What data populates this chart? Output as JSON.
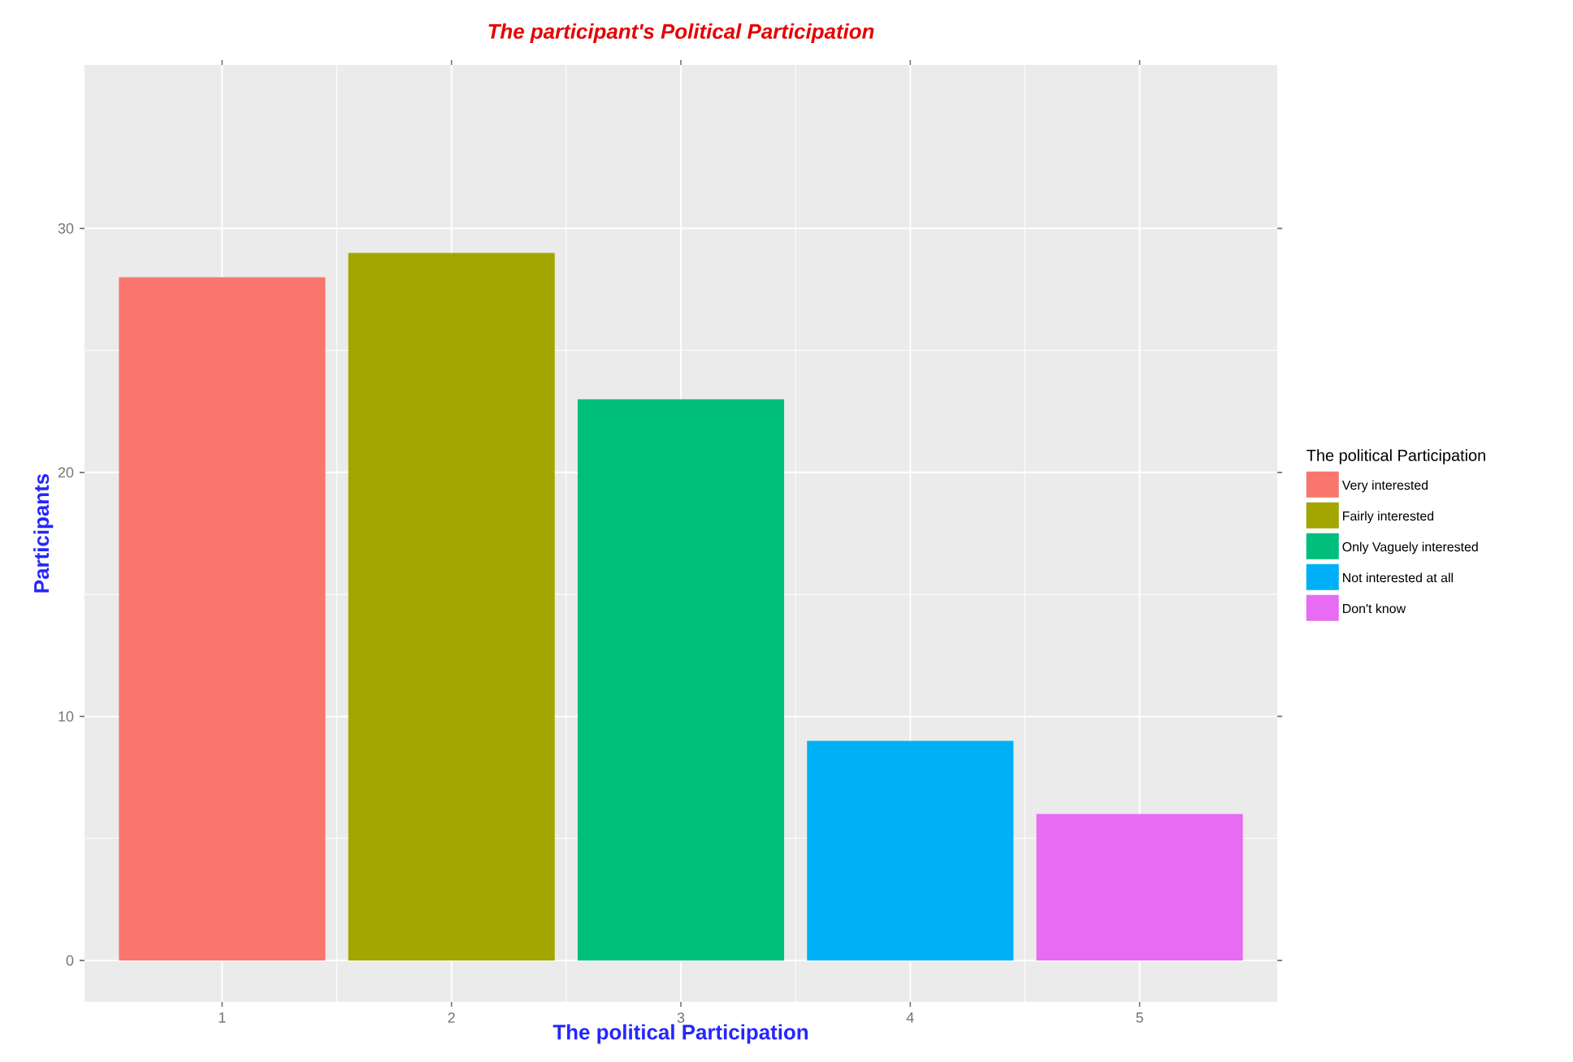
{
  "chart_data": {
    "type": "bar",
    "title": "The participant's Political Participation",
    "xlabel": "The political Participation",
    "ylabel": "Participants",
    "legend_title": "The political Participation",
    "xlim": [
      0.4,
      5.6
    ],
    "xticks": [
      1,
      2,
      3,
      4,
      5
    ],
    "ylim": [
      -1.7,
      36.7
    ],
    "yticks": [
      0,
      10,
      20,
      30
    ],
    "grid": true,
    "legend": "right",
    "series": [
      {
        "name": "Very interested",
        "color": "#f8766d",
        "x": [
          1
        ],
        "values": [
          28
        ]
      },
      {
        "name": "Fairly interested",
        "color": "#a3a500",
        "x": [
          2
        ],
        "values": [
          29
        ]
      },
      {
        "name": "Only Vaguely interested",
        "color": "#00bf7d",
        "x": [
          3
        ],
        "values": [
          23
        ]
      },
      {
        "name": "Not interested at all",
        "color": "#00b0f6",
        "x": [
          4
        ],
        "values": [
          9
        ]
      },
      {
        "name": "Don't know",
        "color": "#e76bf3",
        "x": [
          5
        ],
        "values": [
          6
        ]
      }
    ]
  }
}
